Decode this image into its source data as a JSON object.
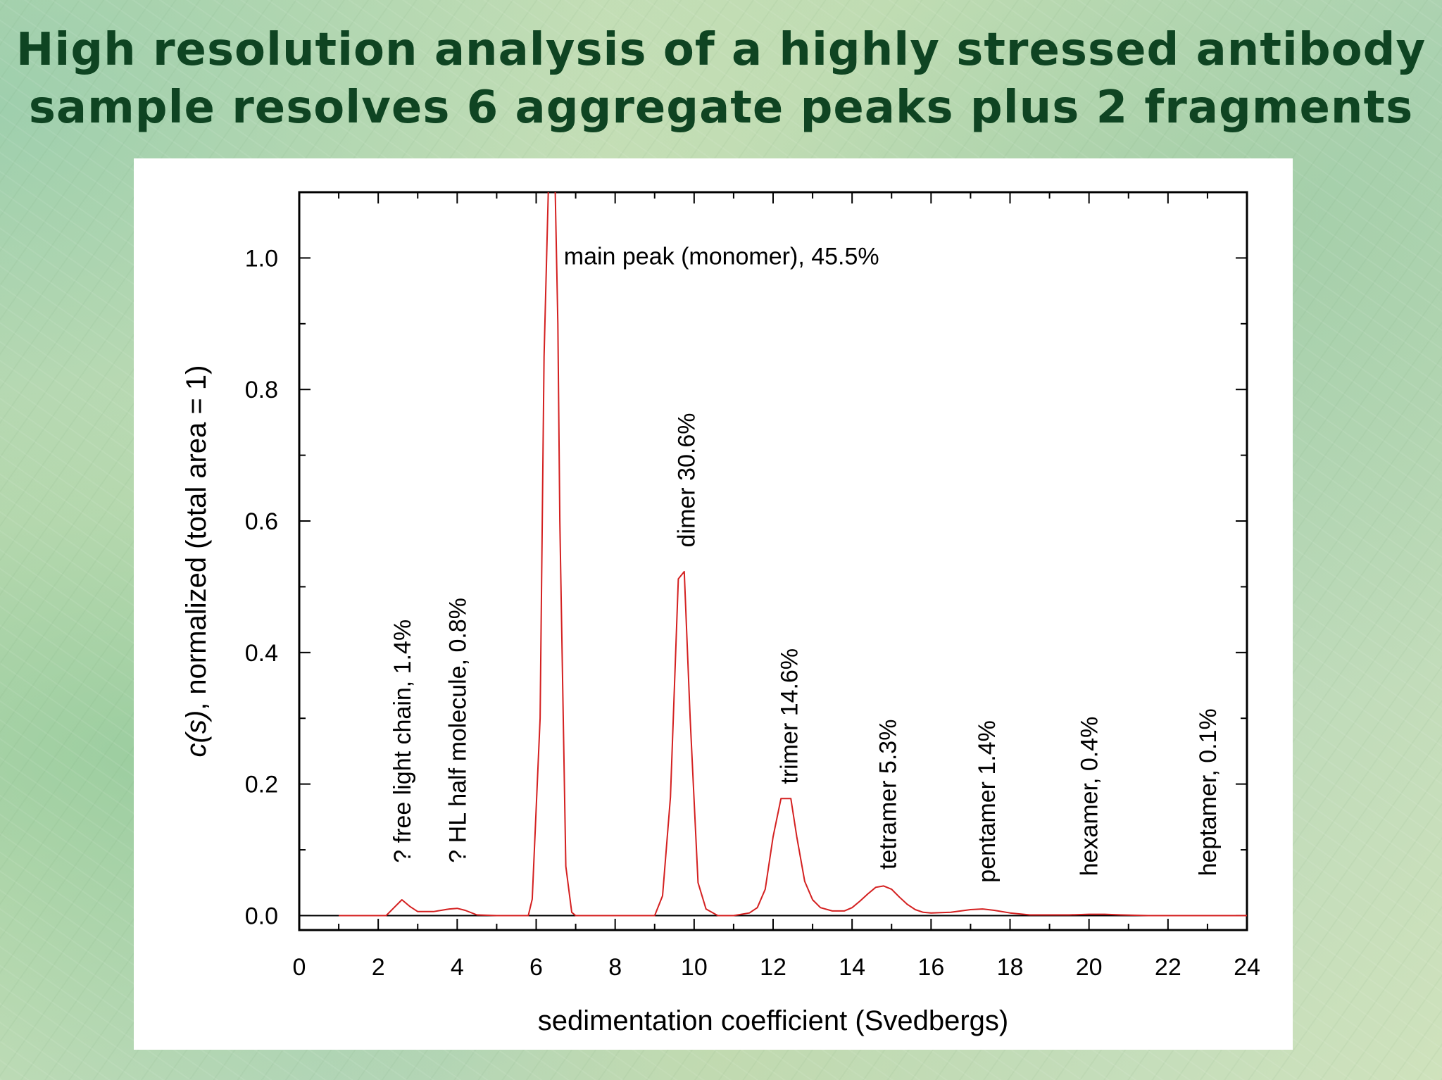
{
  "slide": {
    "title_line1": "High resolution analysis of a highly stressed antibody",
    "title_line2": "sample resolves 6 aggregate peaks plus 2 fragments"
  },
  "chart_data": {
    "type": "line",
    "xlabel": "sedimentation coefficient (Svedbergs)",
    "ylabel_italic": "c(s)",
    "ylabel_rest": ", normalized (total area = 1)",
    "xlim": [
      0,
      24
    ],
    "ylim": [
      -0.022,
      1.1
    ],
    "x_ticks": [
      0,
      2,
      4,
      6,
      8,
      10,
      12,
      14,
      16,
      18,
      20,
      22,
      24
    ],
    "y_ticks": [
      0.0,
      0.2,
      0.4,
      0.6,
      0.8,
      1.0
    ],
    "y_tick_labels": [
      "0.0",
      "0.2",
      "0.4",
      "0.6",
      "0.8",
      "1.0"
    ],
    "line_color": "#d42020",
    "series": [
      {
        "x": [
          1.0,
          2.2,
          2.4,
          2.6,
          2.8,
          3.0,
          3.4,
          3.8,
          4.0,
          4.2,
          4.5,
          5.0,
          5.8,
          5.9,
          6.1,
          6.2,
          6.35,
          6.45,
          6.55,
          6.6,
          6.75,
          6.9,
          7.0,
          8.0,
          9.0,
          9.2,
          9.4,
          9.6,
          9.75,
          9.9,
          10.1,
          10.3,
          10.6,
          11.0,
          11.4,
          11.6,
          11.8,
          12.0,
          12.2,
          12.3,
          12.45,
          12.6,
          12.8,
          13.0,
          13.2,
          13.5,
          13.8,
          14.0,
          14.2,
          14.4,
          14.6,
          14.8,
          15.0,
          15.2,
          15.4,
          15.6,
          15.8,
          16.0,
          16.5,
          17.0,
          17.3,
          17.6,
          18.0,
          18.5,
          19.0,
          19.5,
          20.0,
          20.4,
          20.8,
          21.5,
          22.0,
          24.0
        ],
        "y": [
          0.0,
          0.0,
          0.012,
          0.024,
          0.014,
          0.006,
          0.006,
          0.01,
          0.011,
          0.008,
          0.001,
          0.0,
          0.0,
          0.025,
          0.3,
          0.85,
          1.2,
          1.2,
          0.9,
          0.6,
          0.075,
          0.005,
          0.0,
          0.0,
          0.0,
          0.03,
          0.18,
          0.512,
          0.523,
          0.3,
          0.05,
          0.01,
          0.0,
          0.0,
          0.004,
          0.012,
          0.04,
          0.12,
          0.178,
          0.178,
          0.178,
          0.12,
          0.052,
          0.024,
          0.012,
          0.007,
          0.007,
          0.012,
          0.022,
          0.033,
          0.043,
          0.045,
          0.04,
          0.028,
          0.017,
          0.009,
          0.005,
          0.004,
          0.005,
          0.009,
          0.01,
          0.008,
          0.004,
          0.001,
          0.001,
          0.001,
          0.002,
          0.002,
          0.001,
          0.0,
          0.0,
          0.0
        ]
      }
    ],
    "annotations": [
      {
        "text": "main peak (monomer), 45.5%",
        "x": 6.7,
        "y": 0.99,
        "rotation": 0
      },
      {
        "text": "? free light chain, 1.4%",
        "x": 2.6,
        "y": 0.08,
        "rotation": -90
      },
      {
        "text": "? HL half molecule, 0.8%",
        "x": 4.0,
        "y": 0.08,
        "rotation": -90
      },
      {
        "text": "dimer 30.6%",
        "x": 9.8,
        "y": 0.56,
        "rotation": -90
      },
      {
        "text": "trimer 14.6%",
        "x": 12.4,
        "y": 0.2,
        "rotation": -90
      },
      {
        "text": "tetramer 5.3%",
        "x": 14.9,
        "y": 0.07,
        "rotation": -90
      },
      {
        "text": "pentamer 1.4%",
        "x": 17.4,
        "y": 0.05,
        "rotation": -90
      },
      {
        "text": "hexamer, 0.4%",
        "x": 20.0,
        "y": 0.06,
        "rotation": -90
      },
      {
        "text": "heptamer, 0.1%",
        "x": 23.0,
        "y": 0.06,
        "rotation": -90
      }
    ]
  }
}
